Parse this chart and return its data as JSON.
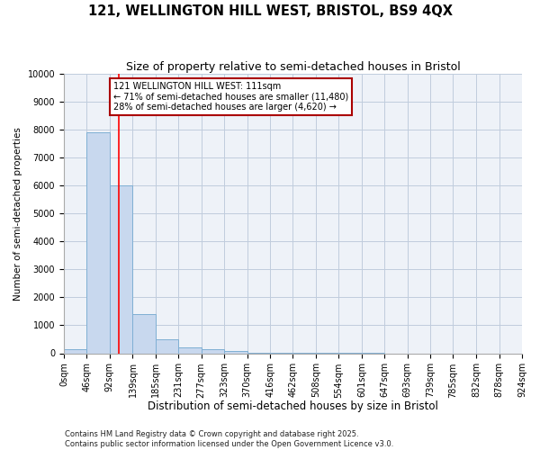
{
  "title": "121, WELLINGTON HILL WEST, BRISTOL, BS9 4QX",
  "subtitle": "Size of property relative to semi-detached houses in Bristol",
  "xlabel": "Distribution of semi-detached houses by size in Bristol",
  "ylabel": "Number of semi-detached properties",
  "bar_values": [
    150,
    7900,
    6000,
    1400,
    500,
    220,
    130,
    70,
    30,
    10,
    5,
    3,
    2,
    1,
    0,
    0,
    0,
    0,
    0,
    0
  ],
  "bin_edges": [
    0,
    46,
    92,
    139,
    185,
    231,
    277,
    323,
    370,
    416,
    462,
    508,
    554,
    601,
    647,
    693,
    739,
    785,
    832,
    878,
    924
  ],
  "bar_color": "#c8d8ee",
  "bar_edge_color": "#7fafd4",
  "grid_color": "#c0ccdd",
  "plot_bg_color": "#eef2f8",
  "fig_bg_color": "#ffffff",
  "red_line_x": 111,
  "annotation_text": "121 WELLINGTON HILL WEST: 111sqm\n← 71% of semi-detached houses are smaller (11,480)\n28% of semi-detached houses are larger (4,620) →",
  "annotation_box_color": "#ffffff",
  "annotation_box_edge": "#aa0000",
  "ylim": [
    0,
    10000
  ],
  "yticks": [
    0,
    1000,
    2000,
    3000,
    4000,
    5000,
    6000,
    7000,
    8000,
    9000,
    10000
  ],
  "footer_line1": "Contains HM Land Registry data © Crown copyright and database right 2025.",
  "footer_line2": "Contains public sector information licensed under the Open Government Licence v3.0.",
  "title_fontsize": 10.5,
  "subtitle_fontsize": 9,
  "xlabel_fontsize": 8.5,
  "ylabel_fontsize": 7.5,
  "tick_fontsize": 7,
  "annotation_fontsize": 7,
  "footer_fontsize": 6
}
